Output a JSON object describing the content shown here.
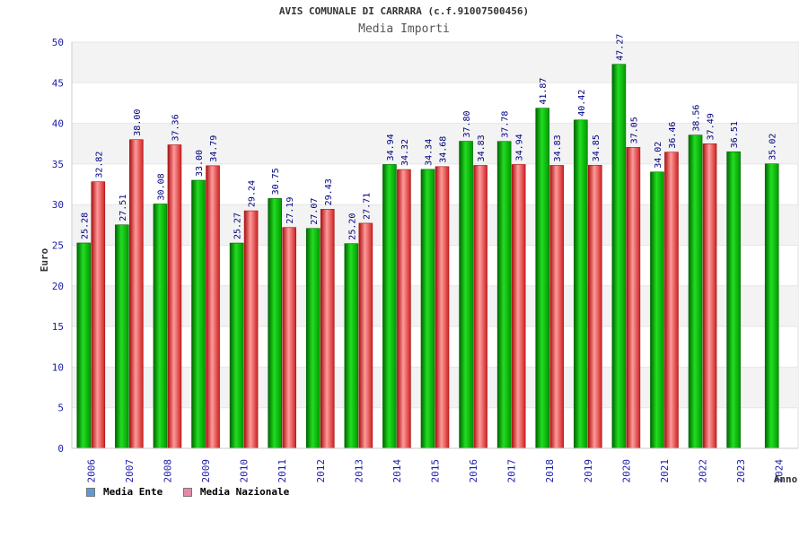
{
  "chart_data": {
    "type": "bar",
    "title": "AVIS COMUNALE DI CARRARA (c.f.91007500456)",
    "subtitle": "Media Importi",
    "xlabel": "Anno",
    "ylabel": "Euro",
    "ylim": [
      0,
      50
    ],
    "yticks": [
      0,
      5,
      10,
      15,
      20,
      25,
      30,
      35,
      40,
      45,
      50
    ],
    "grid": "horizontal-bands",
    "legend_position": "bottom-left",
    "categories": [
      "2006",
      "2007",
      "2008",
      "2009",
      "2010",
      "2011",
      "2012",
      "2013",
      "2014",
      "2015",
      "2016",
      "2017",
      "2018",
      "2019",
      "2020",
      "2021",
      "2022",
      "2023",
      "2024"
    ],
    "series": [
      {
        "name": "Media Ente",
        "legend_color": "#5b9bd5",
        "bar_color": "#14b614",
        "labels": [
          "25.28",
          "27.51",
          "30.08",
          "33.00",
          "25.27",
          "30.75",
          "27.07",
          "25.20",
          "34.94",
          "34.34",
          "37.80",
          "37.78",
          "41.87",
          "40.42",
          "47.27",
          "34.02",
          "38.56",
          "36.51",
          "35.02"
        ],
        "values": [
          25.28,
          27.51,
          30.08,
          33.0,
          25.27,
          30.75,
          27.07,
          25.2,
          34.94,
          34.34,
          37.8,
          37.78,
          41.87,
          40.42,
          47.27,
          34.02,
          38.56,
          36.51,
          35.02
        ]
      },
      {
        "name": "Media Nazionale",
        "legend_color": "#e58aa6",
        "bar_color": "#e84a4a",
        "labels": [
          "32.82",
          "38.00",
          "37.36",
          "34.79",
          "29.24",
          "27.19",
          "29.43",
          "27.71",
          "34.32",
          "34.68",
          "34.83",
          "34.94",
          "34.83",
          "34.85",
          "37.05",
          "36.46",
          "37.49",
          null,
          null
        ],
        "values": [
          32.82,
          38.0,
          37.36,
          34.79,
          29.24,
          27.19,
          29.43,
          27.71,
          34.32,
          34.68,
          34.83,
          34.94,
          34.83,
          34.85,
          37.05,
          36.46,
          37.49,
          null,
          null
        ]
      }
    ]
  }
}
